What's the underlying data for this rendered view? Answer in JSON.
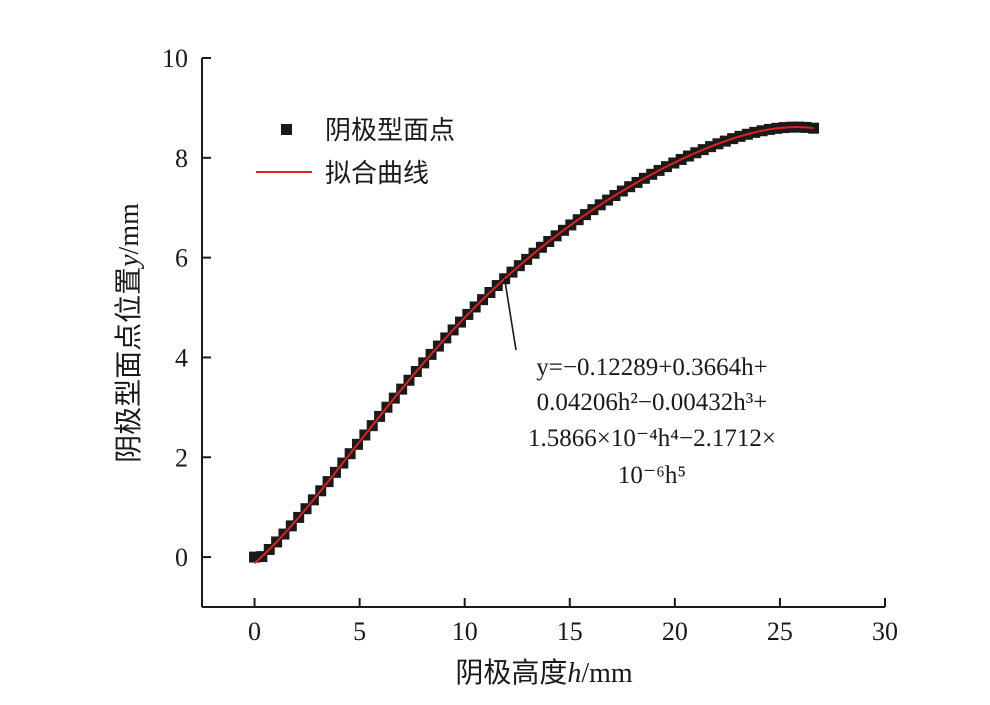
{
  "chart_data": {
    "type": "scatter",
    "xlabel": {
      "prefix": "阴极高度",
      "var": "h",
      "unit": "/mm"
    },
    "ylabel": {
      "prefix": "阴极型面点位置",
      "var": "y",
      "unit": "/mm"
    },
    "xlim": [
      -2.5,
      30
    ],
    "ylim": [
      -1,
      10
    ],
    "xticks": [
      0,
      5,
      10,
      15,
      20,
      25,
      30
    ],
    "yticks": [
      0,
      2,
      4,
      6,
      8,
      10
    ],
    "legend": {
      "placement": "top-left"
    },
    "series": [
      {
        "name": "阴极型面点",
        "marker": "square",
        "color": "#1a1a1a",
        "x_start": 0,
        "x_end": 26.6,
        "x_step": 0.35
      },
      {
        "name": "拟合曲线",
        "style": "line",
        "color": "#e02020",
        "x_start": 0,
        "x_end": 26.6
      }
    ],
    "fit": {
      "coefficients": [
        -0.12289,
        0.3664,
        0.04206,
        -0.00432,
        0.00015866,
        -2.1712e-06
      ],
      "equation_lines": [
        "y=−0.12289+0.3664h+",
        "0.04206h²−0.00432h³+",
        "1.5866×10⁻⁴h⁴−2.1712×",
        "10⁻⁶h⁵"
      ]
    }
  }
}
